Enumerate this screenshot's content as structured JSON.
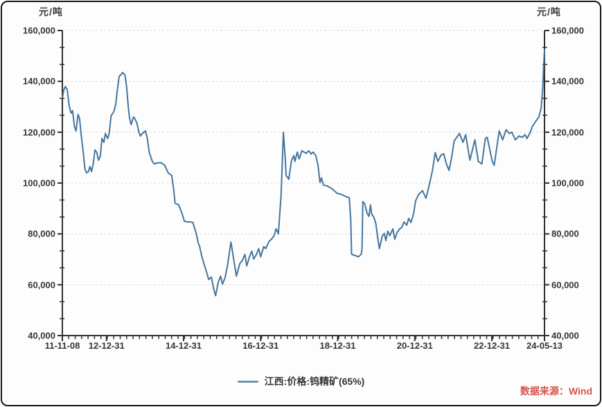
{
  "axes_units": {
    "left_unit": "元/吨",
    "right_unit": "元/吨"
  },
  "legend": {
    "label": "江西:价格:钨精矿(65%)"
  },
  "source": {
    "text": "数据来源：Wind"
  },
  "colors": {
    "line": "#44759e",
    "legend_swatch": "#6d93ae",
    "grid": "#d9d9d9",
    "axis": "#2e2e2e",
    "tick_text": "#343434",
    "source_red": "#d4544c",
    "background": "#fdfdfd",
    "border": "#161616"
  },
  "chart_data": {
    "type": "line",
    "title": "",
    "series_name": "江西:价格:钨精矿(65%)",
    "unit": "元/吨",
    "legend_position": "bottom-center",
    "grid": "horizontal-dashed",
    "x_range": [
      2011.854,
      2024.366
    ],
    "y_range": [
      40000,
      160000
    ],
    "y_ticks": [
      40000,
      60000,
      80000,
      100000,
      120000,
      140000,
      160000
    ],
    "y_minor_divisions": 3,
    "x_minor_step_years": 0.16683,
    "x_tick_labels": [
      {
        "label": "11-11-08",
        "t": 2011.854
      },
      {
        "label": "12-12-31",
        "t": 2013.0
      },
      {
        "label": "14-12-31",
        "t": 2015.0
      },
      {
        "label": "16-12-31",
        "t": 2017.0
      },
      {
        "label": "18-12-31",
        "t": 2019.0
      },
      {
        "label": "20-12-31",
        "t": 2021.0
      },
      {
        "label": "22-12-31",
        "t": 2023.0
      },
      {
        "label": "24-05-13",
        "t": 2024.366
      }
    ],
    "points": [
      [
        2011.854,
        133500
      ],
      [
        2011.89,
        136500
      ],
      [
        2011.93,
        138000
      ],
      [
        2011.98,
        136800
      ],
      [
        2012.03,
        130500
      ],
      [
        2012.08,
        127500
      ],
      [
        2012.12,
        128500
      ],
      [
        2012.17,
        122000
      ],
      [
        2012.21,
        120500
      ],
      [
        2012.26,
        127000
      ],
      [
        2012.3,
        125500
      ],
      [
        2012.35,
        118000
      ],
      [
        2012.4,
        111500
      ],
      [
        2012.44,
        105500
      ],
      [
        2012.48,
        104000
      ],
      [
        2012.53,
        104500
      ],
      [
        2012.57,
        106500
      ],
      [
        2012.61,
        104500
      ],
      [
        2012.66,
        108000
      ],
      [
        2012.7,
        113000
      ],
      [
        2012.75,
        112000
      ],
      [
        2012.79,
        109000
      ],
      [
        2012.84,
        110500
      ],
      [
        2012.88,
        117500
      ],
      [
        2012.93,
        116000
      ],
      [
        2012.97,
        119500
      ],
      [
        2013.03,
        117500
      ],
      [
        2013.07,
        119500
      ],
      [
        2013.12,
        126500
      ],
      [
        2013.19,
        128000
      ],
      [
        2013.24,
        131000
      ],
      [
        2013.28,
        136500
      ],
      [
        2013.33,
        142000
      ],
      [
        2013.37,
        142500
      ],
      [
        2013.42,
        143500
      ],
      [
        2013.48,
        142500
      ],
      [
        2013.52,
        138000
      ],
      [
        2013.57,
        129000
      ],
      [
        2013.6,
        125500
      ],
      [
        2013.64,
        123000
      ],
      [
        2013.7,
        126000
      ],
      [
        2013.73,
        125500
      ],
      [
        2013.79,
        123500
      ],
      [
        2013.84,
        120000
      ],
      [
        2013.88,
        118500
      ],
      [
        2013.93,
        119500
      ],
      [
        2014.01,
        120500
      ],
      [
        2014.06,
        117500
      ],
      [
        2014.11,
        112000
      ],
      [
        2014.19,
        108500
      ],
      [
        2014.24,
        107500
      ],
      [
        2014.33,
        108000
      ],
      [
        2014.42,
        108000
      ],
      [
        2014.46,
        107500
      ],
      [
        2014.51,
        107000
      ],
      [
        2014.6,
        104000
      ],
      [
        2014.69,
        103000
      ],
      [
        2014.74,
        98000
      ],
      [
        2014.78,
        92000
      ],
      [
        2014.87,
        91500
      ],
      [
        2014.96,
        88000
      ],
      [
        2015.02,
        85000
      ],
      [
        2015.1,
        84700
      ],
      [
        2015.18,
        84700
      ],
      [
        2015.24,
        84500
      ],
      [
        2015.33,
        80000
      ],
      [
        2015.38,
        76500
      ],
      [
        2015.42,
        74800
      ],
      [
        2015.47,
        71300
      ],
      [
        2015.54,
        67700
      ],
      [
        2015.6,
        64800
      ],
      [
        2015.65,
        62100
      ],
      [
        2015.72,
        63000
      ],
      [
        2015.78,
        58400
      ],
      [
        2015.83,
        55700
      ],
      [
        2015.9,
        61000
      ],
      [
        2015.96,
        63400
      ],
      [
        2016.01,
        60200
      ],
      [
        2016.08,
        63000
      ],
      [
        2016.14,
        67600
      ],
      [
        2016.23,
        76800
      ],
      [
        2016.37,
        63400
      ],
      [
        2016.46,
        68300
      ],
      [
        2016.53,
        69700
      ],
      [
        2016.59,
        71900
      ],
      [
        2016.64,
        67400
      ],
      [
        2016.71,
        71000
      ],
      [
        2016.77,
        73200
      ],
      [
        2016.82,
        70100
      ],
      [
        2016.89,
        71900
      ],
      [
        2016.95,
        74200
      ],
      [
        2017.0,
        71000
      ],
      [
        2017.08,
        75000
      ],
      [
        2017.13,
        74200
      ],
      [
        2017.22,
        77100
      ],
      [
        2017.28,
        77900
      ],
      [
        2017.35,
        79300
      ],
      [
        2017.4,
        82000
      ],
      [
        2017.46,
        80000
      ],
      [
        2017.53,
        95000
      ],
      [
        2017.59,
        120000
      ],
      [
        2017.64,
        109000
      ],
      [
        2017.66,
        103000
      ],
      [
        2017.73,
        101500
      ],
      [
        2017.8,
        108900
      ],
      [
        2017.86,
        110800
      ],
      [
        2017.89,
        108500
      ],
      [
        2017.95,
        112200
      ],
      [
        2018.0,
        109500
      ],
      [
        2018.07,
        112700
      ],
      [
        2018.18,
        111700
      ],
      [
        2018.25,
        112700
      ],
      [
        2018.31,
        111400
      ],
      [
        2018.36,
        112200
      ],
      [
        2018.43,
        110800
      ],
      [
        2018.49,
        107000
      ],
      [
        2018.54,
        100200
      ],
      [
        2018.58,
        102000
      ],
      [
        2018.63,
        99200
      ],
      [
        2018.72,
        98900
      ],
      [
        2018.85,
        97800
      ],
      [
        2018.98,
        96000
      ],
      [
        2019.08,
        95600
      ],
      [
        2019.21,
        94700
      ],
      [
        2019.3,
        94200
      ],
      [
        2019.34,
        85000
      ],
      [
        2019.36,
        72000
      ],
      [
        2019.45,
        71500
      ],
      [
        2019.54,
        71000
      ],
      [
        2019.61,
        72000
      ],
      [
        2019.63,
        74000
      ],
      [
        2019.65,
        92700
      ],
      [
        2019.7,
        91900
      ],
      [
        2019.76,
        88200
      ],
      [
        2019.81,
        86900
      ],
      [
        2019.85,
        91400
      ],
      [
        2019.88,
        87800
      ],
      [
        2019.94,
        86500
      ],
      [
        2019.99,
        84000
      ],
      [
        2020.03,
        79300
      ],
      [
        2020.08,
        74200
      ],
      [
        2020.16,
        79300
      ],
      [
        2020.21,
        80200
      ],
      [
        2020.25,
        77400
      ],
      [
        2020.3,
        81100
      ],
      [
        2020.35,
        79300
      ],
      [
        2020.43,
        82000
      ],
      [
        2020.48,
        77900
      ],
      [
        2020.54,
        80500
      ],
      [
        2020.61,
        82000
      ],
      [
        2020.66,
        82500
      ],
      [
        2020.72,
        84700
      ],
      [
        2020.79,
        83400
      ],
      [
        2020.84,
        86100
      ],
      [
        2020.9,
        84500
      ],
      [
        2020.97,
        88000
      ],
      [
        2021.02,
        93000
      ],
      [
        2021.1,
        95500
      ],
      [
        2021.2,
        97000
      ],
      [
        2021.29,
        94000
      ],
      [
        2021.38,
        99500
      ],
      [
        2021.46,
        105000
      ],
      [
        2021.53,
        112000
      ],
      [
        2021.6,
        108500
      ],
      [
        2021.68,
        111000
      ],
      [
        2021.75,
        111500
      ],
      [
        2021.82,
        107500
      ],
      [
        2021.89,
        105000
      ],
      [
        2021.96,
        110500
      ],
      [
        2022.02,
        116500
      ],
      [
        2022.16,
        119500
      ],
      [
        2022.25,
        116000
      ],
      [
        2022.32,
        119000
      ],
      [
        2022.43,
        109000
      ],
      [
        2022.56,
        117000
      ],
      [
        2022.65,
        108500
      ],
      [
        2022.74,
        107500
      ],
      [
        2022.83,
        117500
      ],
      [
        2022.88,
        118000
      ],
      [
        2023.01,
        108500
      ],
      [
        2023.06,
        107000
      ],
      [
        2023.19,
        120500
      ],
      [
        2023.28,
        117000
      ],
      [
        2023.37,
        121000
      ],
      [
        2023.45,
        119500
      ],
      [
        2023.52,
        120000
      ],
      [
        2023.61,
        117000
      ],
      [
        2023.7,
        118500
      ],
      [
        2023.79,
        118000
      ],
      [
        2023.86,
        119000
      ],
      [
        2023.91,
        117500
      ],
      [
        2024.0,
        120000
      ],
      [
        2024.04,
        122000
      ],
      [
        2024.15,
        124500
      ],
      [
        2024.22,
        126000
      ],
      [
        2024.28,
        129500
      ],
      [
        2024.32,
        137000
      ],
      [
        2024.34,
        145000
      ],
      [
        2024.366,
        152500
      ]
    ]
  }
}
